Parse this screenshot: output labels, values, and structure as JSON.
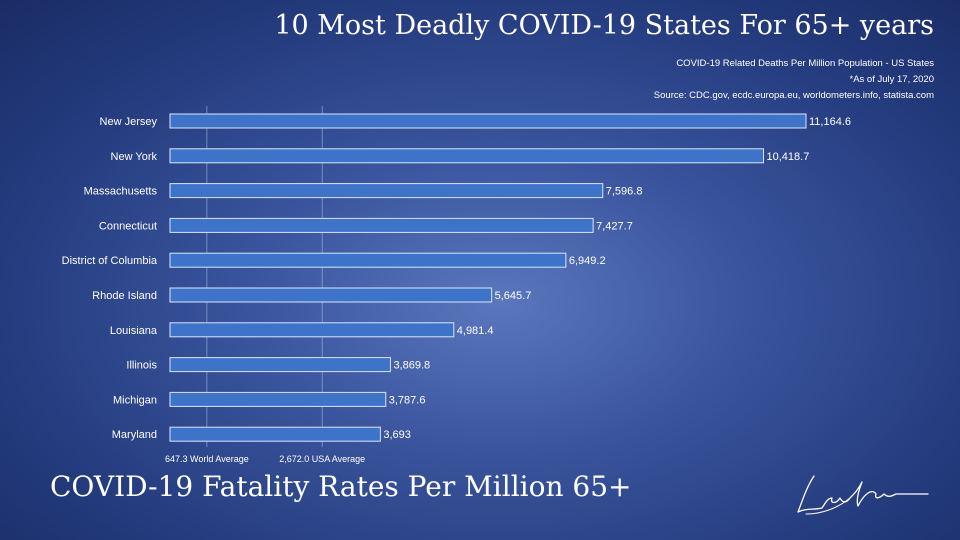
{
  "header": {
    "title": "10 Most Deadly COVID-19 States For 65+ years",
    "subtitle": "COVID-19 Related Deaths Per Million Population - US States",
    "date_note": "*As of July 17, 2020",
    "source": "Source: CDC.gov, ecdc.europa.eu, worldometers.info, statista.com"
  },
  "footer": {
    "title": "COVID-19 Fatality Rates Per Million 65+"
  },
  "colors": {
    "bar": "#3d74c9",
    "bar_border": "#dbe6f7",
    "text": "#ffffff",
    "reference_line": "#9fb0d8"
  },
  "chart_data": {
    "type": "bar",
    "orientation": "horizontal",
    "title": "10 Most Deadly COVID-19 States For 65+ years",
    "categories": [
      "New Jersey",
      "New York",
      "Massachusetts",
      "Connecticut",
      "District of Columbia",
      "Rhode Island",
      "Louisiana",
      "Illinois",
      "Michigan",
      "Maryland"
    ],
    "values": [
      11164.6,
      10418.7,
      7596.8,
      7427.7,
      6949.2,
      5645.7,
      4981.4,
      3869.8,
      3787.6,
      3693
    ],
    "value_labels": [
      "11,164.6",
      "10,418.7",
      "7,596.8",
      "7,427.7",
      "6,949.2",
      "5,645.7",
      "4,981.4",
      "3,869.8",
      "3,787.6",
      "3,693"
    ],
    "reference_lines": [
      {
        "value": 647.3,
        "label": "647.3 World Average"
      },
      {
        "value": 2672.0,
        "label": "2,672.0 USA Average"
      }
    ],
    "xlim": [
      0,
      11164.6
    ],
    "grid": false,
    "legend": "none"
  },
  "signature_icon": "handwritten-signature"
}
